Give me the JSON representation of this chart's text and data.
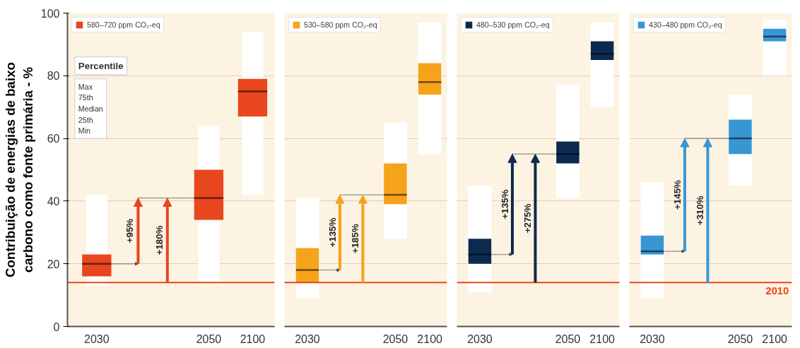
{
  "chart_data": [
    {
      "type": "box",
      "categories": [
        "2030",
        "2050",
        "2100"
      ],
      "ylabel": "Contribuição de energias de baixo carbono como fonte primária - %",
      "ylim": [
        0,
        100
      ],
      "yticks": [
        0,
        20,
        40,
        60,
        80,
        100
      ],
      "grid": "y",
      "legend": "top left",
      "series": [
        {
          "name": "580–720 ppm CO₂-eq",
          "color": "#e8461e",
          "boxes": [
            {
              "low": 13,
              "q1": 16,
              "median": 20,
              "q3": 23,
              "high": 42
            },
            {
              "low": 14,
              "q1": 34,
              "median": 41,
              "q3": 50,
              "high": 64
            },
            {
              "low": 42,
              "q1": 67,
              "median": 75,
              "q3": 79,
              "high": 94
            }
          ]
        }
      ],
      "ref_lines": [
        {
          "axis": "y",
          "value": 14,
          "color": "#e8461e"
        }
      ],
      "annotations": [
        "+95%",
        "+180%",
        "Percentile",
        "Max",
        "75th",
        "Median",
        "25th",
        "Min"
      ]
    },
    {
      "type": "box",
      "categories": [
        "2030",
        "2050",
        "2100"
      ],
      "ylim": [
        0,
        100
      ],
      "yticks": [
        0,
        20,
        40,
        60,
        80,
        100
      ],
      "grid": "y",
      "legend": "top left",
      "tick_labels": "x",
      "series": [
        {
          "name": "530–580 ppm CO₂-eq",
          "color": "#f5a31a",
          "boxes": [
            {
              "low": 9,
              "q1": 14,
              "median": 18,
              "q3": 25,
              "high": 41
            },
            {
              "low": 28,
              "q1": 39,
              "median": 42,
              "q3": 52,
              "high": 65
            },
            {
              "low": 55,
              "q1": 74,
              "median": 78,
              "q3": 84,
              "high": 97
            }
          ]
        }
      ],
      "ref_lines": [
        {
          "axis": "y",
          "value": 14,
          "color": "#e8461e"
        }
      ],
      "annotations": [
        "+135%",
        "+185%"
      ]
    },
    {
      "type": "box",
      "categories": [
        "2030",
        "2050",
        "2100"
      ],
      "ylim": [
        0,
        100
      ],
      "yticks": [
        0,
        20,
        40,
        60,
        80,
        100
      ],
      "grid": "y",
      "legend": "top left",
      "tick_labels": "x",
      "series": [
        {
          "name": "480–530 ppm CO₂-eq",
          "color": "#0b2a4f",
          "boxes": [
            {
              "low": 11,
              "q1": 20,
              "median": 23,
              "q3": 28,
              "high": 45
            },
            {
              "low": 41,
              "q1": 52,
              "median": 55,
              "q3": 59,
              "high": 77
            },
            {
              "low": 70,
              "q1": 85,
              "median": 87,
              "q3": 91,
              "high": 97
            }
          ]
        }
      ],
      "ref_lines": [
        {
          "axis": "y",
          "value": 14,
          "color": "#e8461e"
        }
      ],
      "annotations": [
        "+135%",
        "+275%"
      ]
    },
    {
      "type": "box",
      "categories": [
        "2030",
        "2050",
        "2100"
      ],
      "ylim": [
        0,
        100
      ],
      "yticks": [
        0,
        20,
        40,
        60,
        80,
        100
      ],
      "grid": "y",
      "legend": "top left",
      "tick_labels": "x",
      "series": [
        {
          "name": "430–480 ppm CO₂-eq",
          "color": "#3896d3",
          "boxes": [
            {
              "low": 9,
              "q1": 23,
              "median": 24,
              "q3": 29,
              "high": 46
            },
            {
              "low": 45,
              "q1": 55,
              "median": 60,
              "q3": 66,
              "high": 74
            },
            {
              "low": 80,
              "q1": 91,
              "median": 92.5,
              "q3": 95,
              "high": 98
            }
          ]
        }
      ],
      "ref_lines": [
        {
          "axis": "y",
          "value": 14,
          "color": "#e8461e"
        }
      ],
      "annotations": [
        "+145%",
        "+310%",
        {
          "text": "2010",
          "y": 14
        }
      ]
    }
  ]
}
